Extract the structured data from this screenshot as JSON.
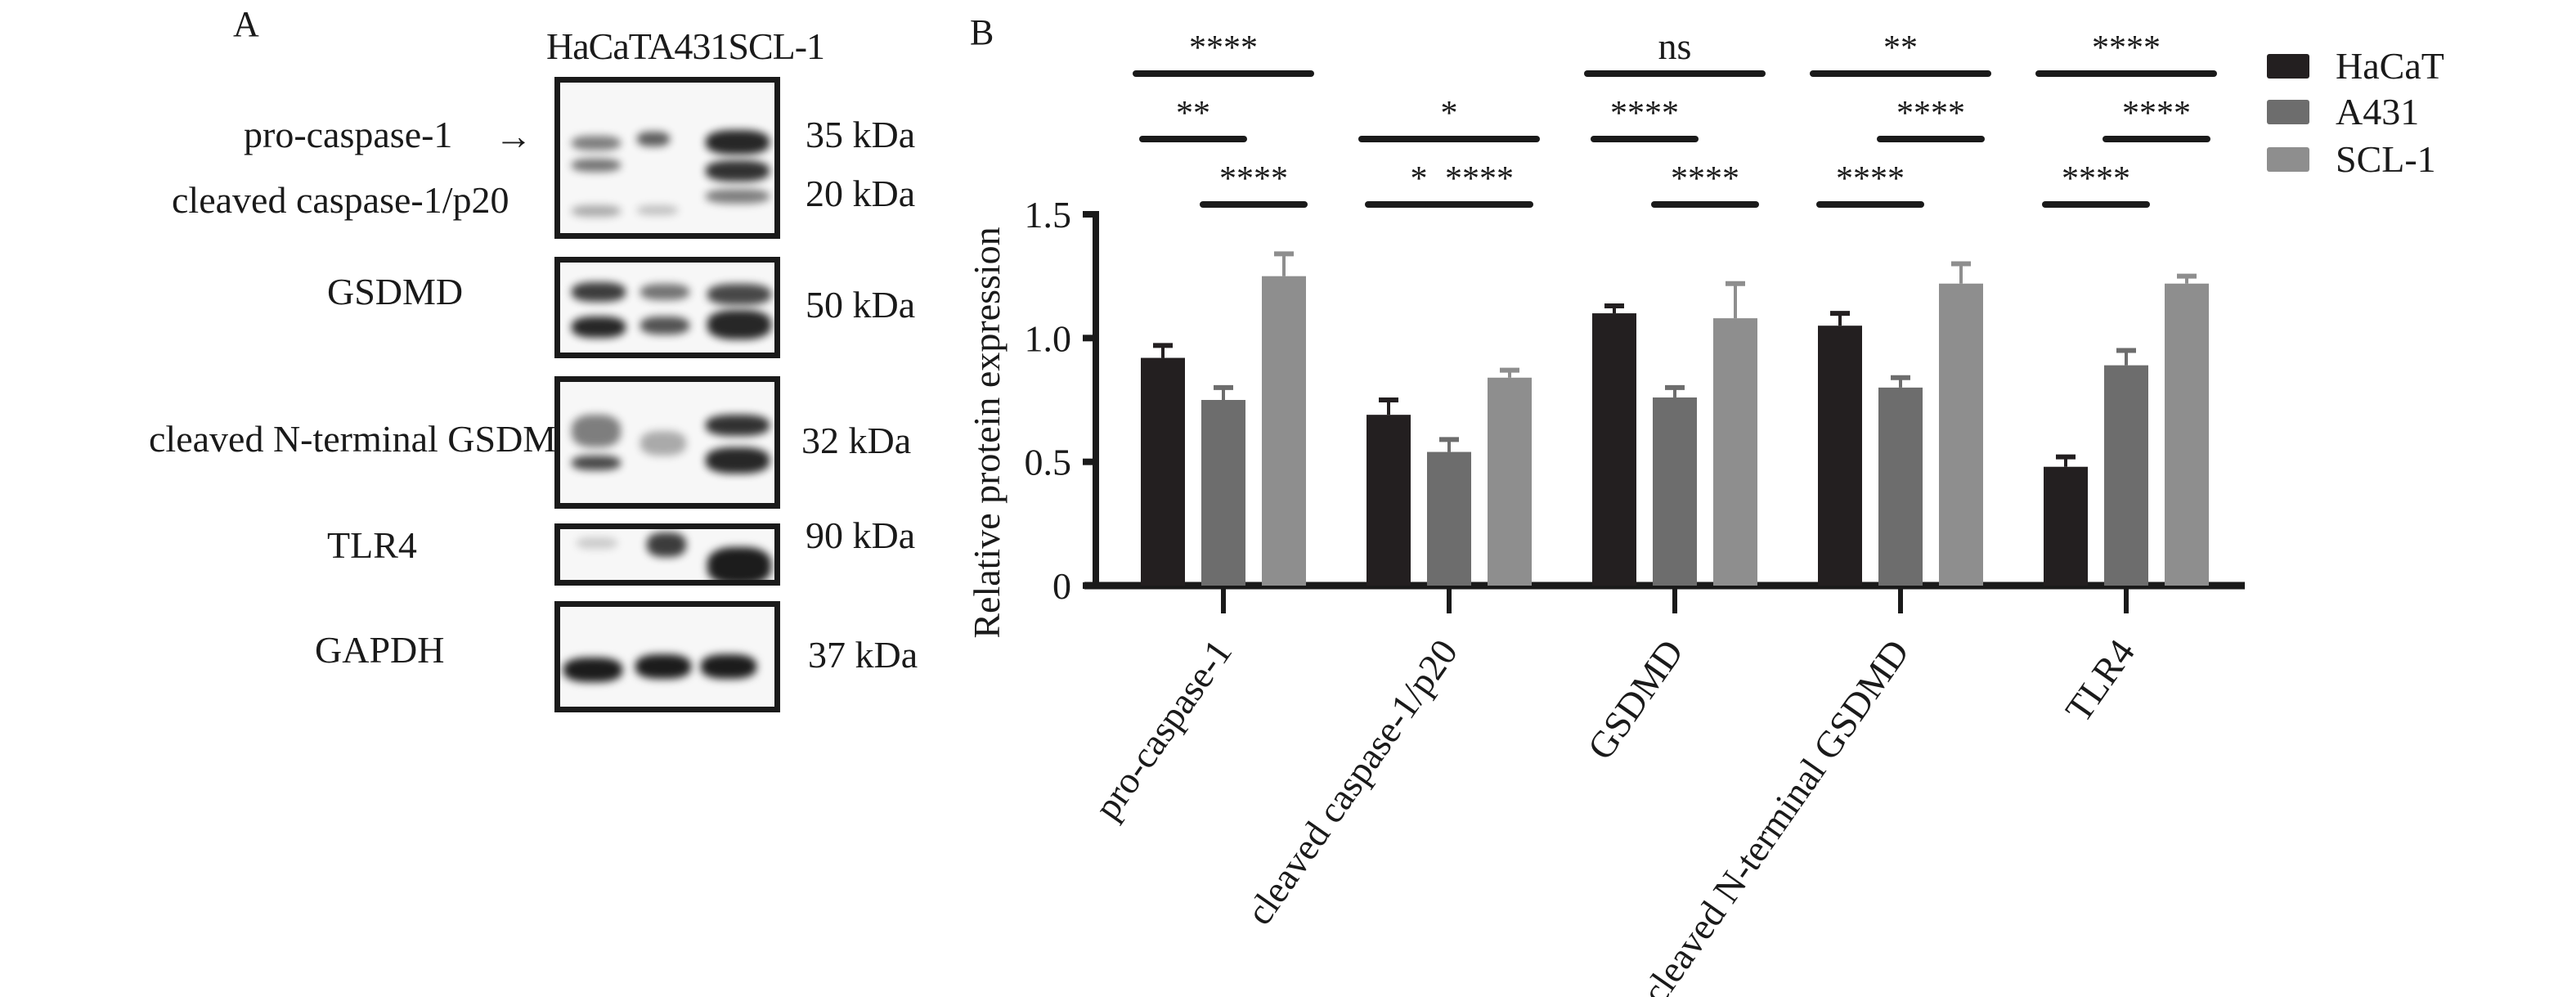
{
  "panel_a": {
    "letter": "A",
    "lane_header": "HaCaTA431SCL-1",
    "lanes": [
      "HaCaT",
      "A431",
      "SCL-1"
    ],
    "blots": [
      {
        "labels": [
          "pro-caspase-1",
          "cleaved caspase-1/p20"
        ],
        "kda": [
          "35 kDa",
          "20 kDa"
        ],
        "arrow": "→"
      },
      {
        "labels": [
          "GSDMD"
        ],
        "kda": [
          "50 kDa"
        ]
      },
      {
        "labels": [
          "cleaved N-terminal GSDMD"
        ],
        "kda": [
          "32 kDa"
        ]
      },
      {
        "labels": [
          "TLR4"
        ],
        "kda": [
          "90 kDa"
        ]
      },
      {
        "labels": [
          "GAPDH"
        ],
        "kda": [
          "37 kDa"
        ]
      }
    ]
  },
  "panel_b": {
    "letter": "B"
  },
  "chart_data": {
    "type": "bar",
    "title": "",
    "xlabel": "",
    "ylabel": "Relative protein expression",
    "ylim": [
      0,
      1.5
    ],
    "yticks": [
      0,
      0.5,
      1.0,
      1.5
    ],
    "ytick_labels": [
      "0",
      "0.5",
      "1.0",
      "1.5"
    ],
    "grid": false,
    "legend_position": "top-right",
    "categories": [
      "pro-caspase-1",
      "cleaved caspase-1/p20",
      "GSDMD",
      "cleaved N-terminal GSDMD",
      "TLR4"
    ],
    "series": [
      {
        "name": "HaCaT",
        "color": "#231f20",
        "values": [
          0.92,
          0.69,
          1.1,
          1.05,
          0.48
        ],
        "errors": [
          0.05,
          0.06,
          0.03,
          0.05,
          0.04
        ]
      },
      {
        "name": "A431",
        "color": "#6d6d6d",
        "values": [
          0.75,
          0.54,
          0.76,
          0.8,
          0.89
        ],
        "errors": [
          0.05,
          0.05,
          0.04,
          0.04,
          0.06
        ]
      },
      {
        "name": "SCL-1",
        "color": "#8e8e8e",
        "values": [
          1.25,
          0.84,
          1.08,
          1.22,
          1.22
        ],
        "errors": [
          0.09,
          0.03,
          0.14,
          0.08,
          0.03
        ]
      }
    ],
    "significance": [
      {
        "category": "pro-caspase-1",
        "comparisons": [
          {
            "pair": [
              "HaCaT",
              "SCL-1"
            ],
            "label": "****",
            "row": 0
          },
          {
            "pair": [
              "HaCaT",
              "A431"
            ],
            "label": "**",
            "row": 1
          },
          {
            "pair": [
              "A431",
              "SCL-1"
            ],
            "label": "****",
            "row": 2
          }
        ]
      },
      {
        "category": "cleaved caspase-1/p20",
        "comparisons": [
          {
            "pair": [
              "HaCaT",
              "SCL-1"
            ],
            "label": "*",
            "row": 1
          },
          {
            "pair": [
              "HaCaT",
              "A431"
            ],
            "label": "*",
            "row": 2
          },
          {
            "pair": [
              "A431",
              "SCL-1"
            ],
            "label": "****",
            "row": 2
          }
        ]
      },
      {
        "category": "GSDMD",
        "comparisons": [
          {
            "pair": [
              "HaCaT",
              "SCL-1"
            ],
            "label": "ns",
            "row": 0
          },
          {
            "pair": [
              "HaCaT",
              "A431"
            ],
            "label": "****",
            "row": 1
          },
          {
            "pair": [
              "A431",
              "SCL-1"
            ],
            "label": "****",
            "row": 2
          }
        ]
      },
      {
        "category": "cleaved N-terminal GSDMD",
        "comparisons": [
          {
            "pair": [
              "HaCaT",
              "SCL-1"
            ],
            "label": "**",
            "row": 0
          },
          {
            "pair": [
              "A431",
              "SCL-1"
            ],
            "label": "****",
            "row": 1
          },
          {
            "pair": [
              "HaCaT",
              "A431"
            ],
            "label": "****",
            "row": 2
          }
        ]
      },
      {
        "category": "TLR4",
        "comparisons": [
          {
            "pair": [
              "HaCaT",
              "SCL-1"
            ],
            "label": "****",
            "row": 0
          },
          {
            "pair": [
              "A431",
              "SCL-1"
            ],
            "label": "****",
            "row": 1
          },
          {
            "pair": [
              "HaCaT",
              "A431"
            ],
            "label": "****",
            "row": 2
          }
        ]
      }
    ]
  }
}
